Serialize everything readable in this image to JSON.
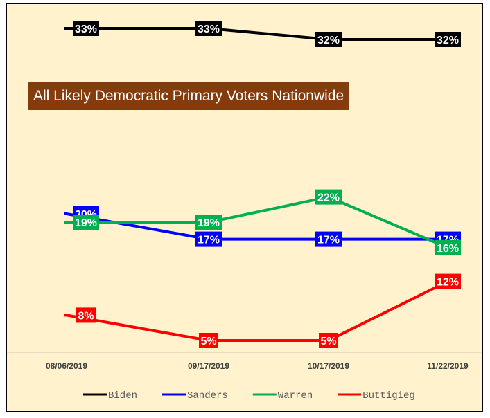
{
  "chart_data": {
    "type": "line",
    "title": "All Likely Democratic Primary Voters Nationwide",
    "categories": [
      "08/06/2019",
      "09/17/2019",
      "10/17/2019",
      "11/22/2019"
    ],
    "series": [
      {
        "name": "Biden",
        "color": "#000000",
        "values": [
          33,
          33,
          32,
          32
        ],
        "labels": [
          "33%",
          "33%",
          "32%",
          "32%"
        ]
      },
      {
        "name": "Sanders",
        "color": "#0000ff",
        "values": [
          20,
          17,
          17,
          17
        ],
        "labels": [
          "20%",
          "17%",
          "17%",
          "17%"
        ]
      },
      {
        "name": "Warren",
        "color": "#00b050",
        "values": [
          19,
          19,
          22,
          16
        ],
        "labels": [
          "19%",
          "19%",
          "22%",
          "16%"
        ]
      },
      {
        "name": "Buttigieg",
        "color": "#ff0000",
        "values": [
          8,
          5,
          5,
          12
        ],
        "labels": [
          "8%",
          "5%",
          "5%",
          "12%"
        ]
      }
    ],
    "ylim": [
      0,
      35
    ],
    "grid": false,
    "legend_position": "bottom",
    "background_color": "#fff2cc"
  }
}
